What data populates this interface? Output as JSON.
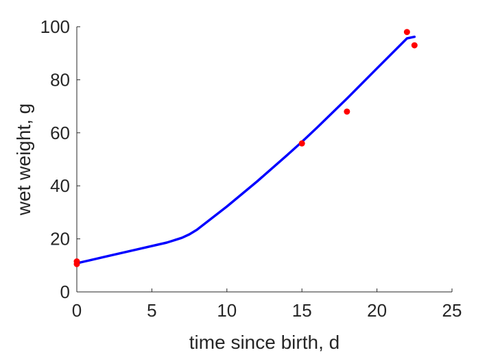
{
  "chart_data": {
    "type": "line",
    "title": "",
    "xlabel": "time since birth, d",
    "ylabel": "wet weight, g",
    "xlim": [
      0,
      25
    ],
    "ylim": [
      0,
      100
    ],
    "xticks": [
      0,
      5,
      10,
      15,
      20,
      25
    ],
    "yticks": [
      0,
      20,
      40,
      60,
      80,
      100
    ],
    "grid": false,
    "series": [
      {
        "kind": "line",
        "color": "#0000ff",
        "x": [
          0,
          2,
          4,
          6,
          7,
          7.5,
          8,
          9,
          10,
          12,
          14,
          15,
          16,
          18,
          20,
          22,
          22.5
        ],
        "y": [
          10.8,
          13.4,
          16.0,
          18.6,
          20.4,
          21.7,
          23.4,
          27.8,
          32.2,
          41.6,
          51.5,
          56.6,
          61.9,
          72.9,
          84.3,
          95.6,
          96.2
        ]
      },
      {
        "kind": "scatter",
        "color": "#ff0000",
        "x": [
          0,
          0,
          15,
          18,
          22,
          22.5
        ],
        "y": [
          11.5,
          10.5,
          56,
          68,
          98,
          93
        ]
      }
    ]
  }
}
